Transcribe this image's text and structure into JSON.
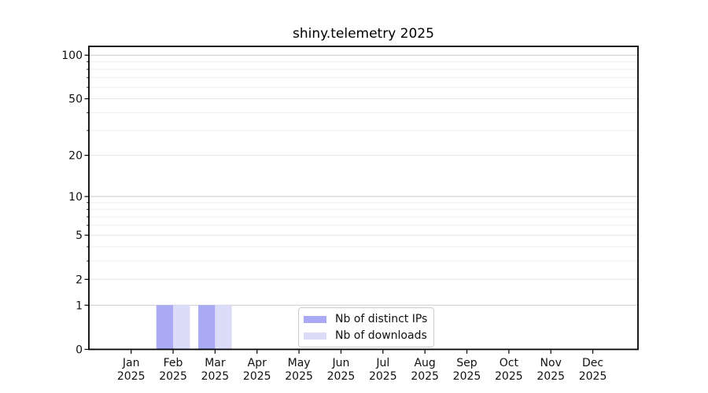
{
  "chart_data": {
    "type": "bar",
    "title": "shiny.telemetry 2025",
    "x": {
      "months": [
        "Jan",
        "Feb",
        "Mar",
        "Apr",
        "May",
        "Jun",
        "Jul",
        "Aug",
        "Sep",
        "Oct",
        "Nov",
        "Dec"
      ],
      "year": "2025"
    },
    "series": [
      {
        "key": "distinct-ips",
        "name": "Nb of distinct IPs",
        "color": "#a9a9f4",
        "values": [
          0,
          1,
          1,
          0,
          0,
          0,
          0,
          0,
          0,
          0,
          0,
          0
        ]
      },
      {
        "key": "downloads",
        "name": "Nb of downloads",
        "color": "#dcdcf9",
        "values": [
          0,
          1,
          1,
          0,
          0,
          0,
          0,
          0,
          0,
          0,
          0,
          0
        ]
      }
    ],
    "yscale": "log1p",
    "ylim": [
      0,
      115
    ],
    "yticks": [
      0,
      1,
      2,
      5,
      10,
      20,
      50,
      100
    ],
    "yticks_minor": [
      3,
      4,
      6,
      7,
      8,
      9,
      30,
      40,
      60,
      70,
      80,
      90
    ],
    "grid": "on",
    "legend_position": "lower center",
    "colors": {
      "axis": "#000000",
      "text": "#111111",
      "grid_power": "#cbcbcb",
      "grid_major": "#e4e4e4",
      "grid_minor": "#eeeeee",
      "legend_border": "#cccccc"
    }
  }
}
